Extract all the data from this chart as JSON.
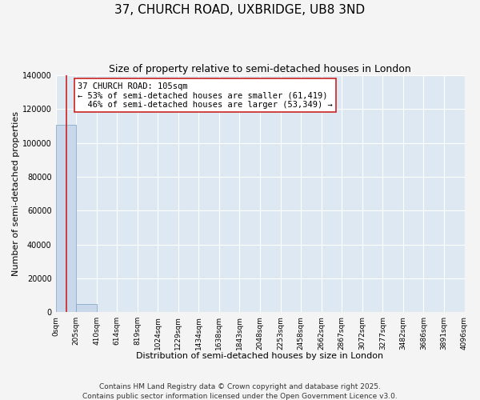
{
  "title": "37, CHURCH ROAD, UXBRIDGE, UB8 3ND",
  "subtitle": "Size of property relative to semi-detached houses in London",
  "xlabel": "Distribution of semi-detached houses by size in London",
  "ylabel": "Number of semi-detached properties",
  "property_size": 105,
  "property_label": "37 CHURCH ROAD: 105sqm",
  "pct_smaller": 53,
  "pct_larger": 46,
  "count_smaller": 61419,
  "count_larger": 53349,
  "bin_edges": [
    0,
    205,
    410,
    614,
    819,
    1024,
    1229,
    1434,
    1638,
    1843,
    2048,
    2253,
    2458,
    2662,
    2867,
    3072,
    3277,
    3482,
    3686,
    3891,
    4096
  ],
  "bin_counts": [
    110700,
    4800,
    250,
    80,
    40,
    20,
    12,
    8,
    5,
    4,
    3,
    2,
    2,
    1,
    1,
    1,
    1,
    1,
    0,
    0
  ],
  "bar_color": "#c8d8ea",
  "bar_edge_color": "#7aa0c0",
  "vline_color": "#cc2222",
  "vline_x": 105,
  "annotation_box_edge": "#cc2222",
  "annotation_box_face": "#ffffff",
  "ylim": [
    0,
    140000
  ],
  "yticks": [
    0,
    20000,
    40000,
    60000,
    80000,
    100000,
    120000,
    140000
  ],
  "background_color": "#dde8f2",
  "fig_background": "#f4f4f4",
  "footer1": "Contains HM Land Registry data © Crown copyright and database right 2025.",
  "footer2": "Contains public sector information licensed under the Open Government Licence v3.0.",
  "title_fontsize": 11,
  "subtitle_fontsize": 9,
  "xlabel_fontsize": 8,
  "ylabel_fontsize": 8,
  "tick_fontsize": 7,
  "footer_fontsize": 6.5
}
